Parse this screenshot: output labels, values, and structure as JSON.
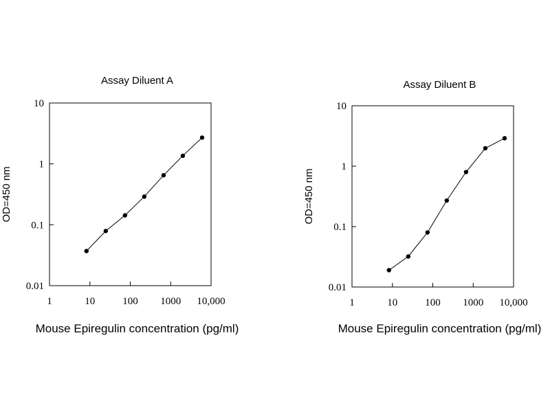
{
  "chart_data": [
    {
      "type": "line",
      "title": "Assay Diluent A",
      "xlabel": "Mouse Epiregulin concentration (pg/ml)",
      "ylabel": "OD=450 nm",
      "x_scale": "log",
      "y_scale": "log",
      "xlim": [
        1,
        10000
      ],
      "ylim": [
        0.01,
        10
      ],
      "x_ticks": [
        1,
        10,
        100,
        1000,
        10000
      ],
      "x_tick_labels": [
        "1",
        "10",
        "100",
        "1000",
        "10,000"
      ],
      "y_ticks": [
        0.01,
        0.1,
        1,
        10
      ],
      "y_tick_labels": [
        "0.01",
        "0.1",
        "1",
        "10"
      ],
      "grid": false,
      "series": [
        {
          "x": [
            8.23,
            24.7,
            74.1,
            222,
            667,
            2000,
            6000
          ],
          "y": [
            0.037,
            0.079,
            0.143,
            0.29,
            0.65,
            1.36,
            2.7
          ]
        }
      ]
    },
    {
      "type": "line",
      "title": "Assay Diluent B",
      "xlabel": "Mouse Epiregulin concentration (pg/ml)",
      "ylabel": "OD=450 nm",
      "x_scale": "log",
      "y_scale": "log",
      "xlim": [
        1,
        10000
      ],
      "ylim": [
        0.01,
        10
      ],
      "x_ticks": [
        1,
        10,
        100,
        1000,
        10000
      ],
      "x_tick_labels": [
        "1",
        "10",
        "100",
        "1000",
        "10,000"
      ],
      "y_ticks": [
        0.01,
        0.1,
        1,
        10
      ],
      "y_tick_labels": [
        "0.01",
        "0.1",
        "1",
        "10"
      ],
      "grid": false,
      "series": [
        {
          "x": [
            8.23,
            24.7,
            74.1,
            222,
            667,
            2000,
            6000
          ],
          "y": [
            0.019,
            0.032,
            0.08,
            0.27,
            0.8,
            1.98,
            2.9
          ]
        }
      ]
    }
  ]
}
